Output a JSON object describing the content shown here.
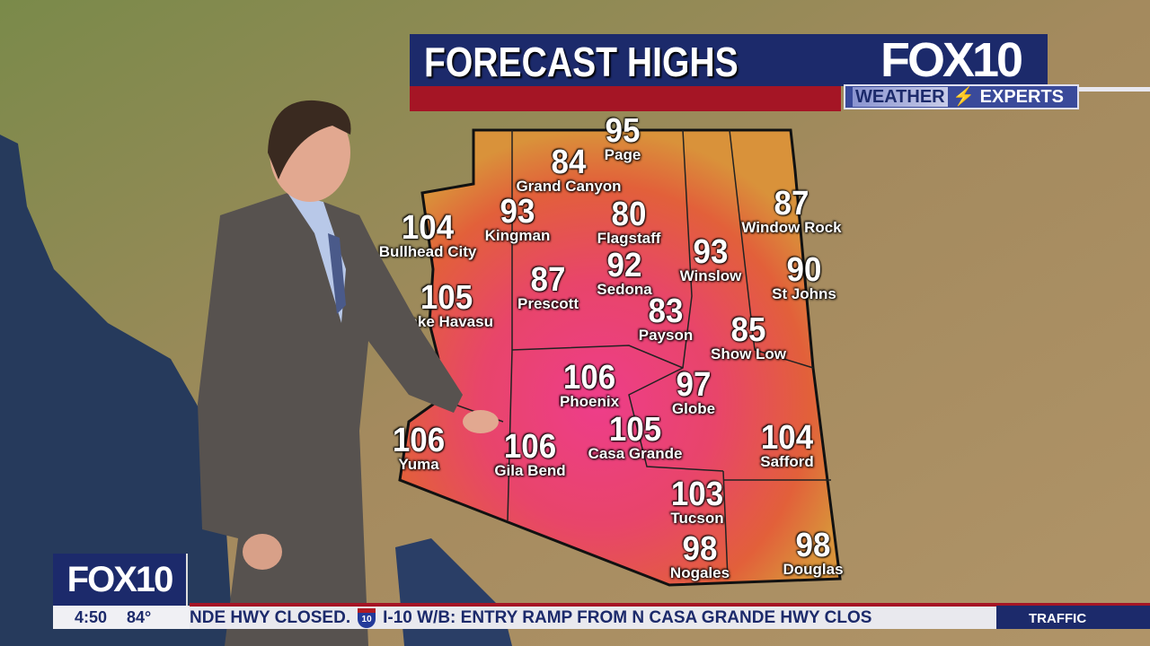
{
  "header": {
    "title": "FORECAST HIGHS",
    "logo": "FOX10",
    "sublogo_left": "WEATHER",
    "sublogo_right": "EXPERTS"
  },
  "cities": [
    {
      "name": "Page",
      "temp": "95"
    },
    {
      "name": "Grand Canyon",
      "temp": "84"
    },
    {
      "name": "Kingman",
      "temp": "93"
    },
    {
      "name": "Flagstaff",
      "temp": "80"
    },
    {
      "name": "Bullhead City",
      "temp": "104"
    },
    {
      "name": "Window Rock",
      "temp": "87"
    },
    {
      "name": "Winslow",
      "temp": "93"
    },
    {
      "name": "St Johns",
      "temp": "90"
    },
    {
      "name": "Lake Havasu",
      "temp": "105"
    },
    {
      "name": "Prescott",
      "temp": "87"
    },
    {
      "name": "Sedona",
      "temp": "92"
    },
    {
      "name": "Payson",
      "temp": "83"
    },
    {
      "name": "Show Low",
      "temp": "85"
    },
    {
      "name": "Phoenix",
      "temp": "106"
    },
    {
      "name": "Globe",
      "temp": "97"
    },
    {
      "name": "Casa Grande",
      "temp": "105"
    },
    {
      "name": "Safford",
      "temp": "104"
    },
    {
      "name": "Yuma",
      "temp": "106"
    },
    {
      "name": "Gila Bend",
      "temp": "106"
    },
    {
      "name": "Tucson",
      "temp": "103"
    },
    {
      "name": "Nogales",
      "temp": "98"
    },
    {
      "name": "Douglas",
      "temp": "98"
    }
  ],
  "bug": {
    "logo": "FOX10",
    "time": "4:50",
    "temp": "84°"
  },
  "ticker": {
    "text_a": "NDE HWY CLOSED.",
    "shield": "10",
    "text_b": "I-10 W/B: ENTRY RAMP FROM N CASA GRANDE HWY CLOS",
    "category": "TRAFFIC"
  },
  "colors": {
    "navy": "#1c2a6b",
    "red": "#a51525",
    "heat": "#e8406a"
  }
}
